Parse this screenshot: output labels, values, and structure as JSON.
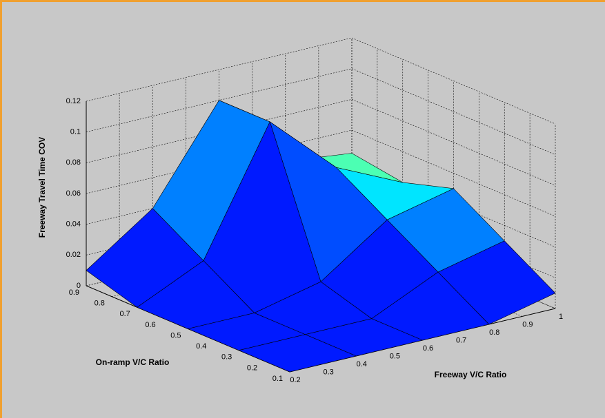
{
  "chart_data": {
    "type": "surface",
    "x_label": "Freeway V/C Ratio",
    "y_label": "On-ramp V/C Ratio",
    "z_label": "Freeway Travel Time COV",
    "x": [
      0.2,
      0.4,
      0.6,
      0.8,
      1
    ],
    "y": [
      0.1,
      0.3,
      0.5,
      0.7,
      0.9
    ],
    "z": [
      [
        0,
        0,
        0,
        0,
        0.01
      ],
      [
        0,
        0,
        0,
        0.02,
        0.03
      ],
      [
        0,
        0,
        0.01,
        0.04,
        0.05
      ],
      [
        0,
        0.02,
        0.1,
        0.06,
        0.04
      ],
      [
        0.01,
        0.04,
        0.1,
        0.05,
        0.045
      ]
    ],
    "xlim": [
      0.2,
      1
    ],
    "ylim": [
      0.1,
      0.9
    ],
    "zlim": [
      0,
      0.12
    ],
    "xticks": [
      0.2,
      0.3,
      0.4,
      0.5,
      0.6,
      0.7,
      0.8,
      0.9,
      1
    ],
    "yticks": [
      0.1,
      0.2,
      0.3,
      0.4,
      0.5,
      0.6,
      0.7,
      0.8,
      0.9
    ],
    "zticks": [
      0,
      0.02,
      0.04,
      0.06,
      0.08,
      0.1,
      0.12
    ],
    "colormap": "jet",
    "grid": true
  }
}
